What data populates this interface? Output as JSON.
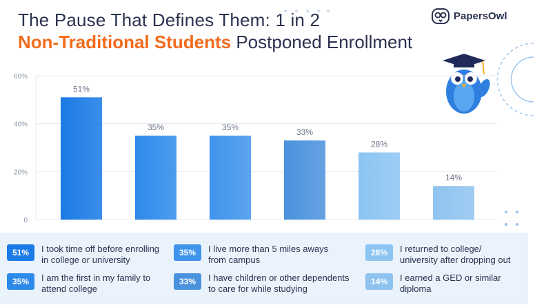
{
  "header": {
    "title_line1": "The Pause That Defines Them: 1 in 2",
    "title_highlight": "Non-Traditional Students",
    "title_rest": " Postponed Enrollment",
    "brand_name": "PapersOwl"
  },
  "colors": {
    "title_text": "#2b3250",
    "highlight": "#f26b1d",
    "legend_bg": "#eaf3fc",
    "bar_shades": [
      "#1a7ae6",
      "#2d8aea",
      "#3f94ec",
      "#4a92dd",
      "#8cc4f2",
      "#8fc3ef"
    ]
  },
  "chart_data": {
    "type": "bar",
    "categories": [
      "51%",
      "35%",
      "35%",
      "33%",
      "28%",
      "14%"
    ],
    "values": [
      51,
      35,
      35,
      33,
      28,
      14
    ],
    "data_labels": [
      "51%",
      "35%",
      "35%",
      "33%",
      "28%",
      "14%"
    ],
    "yticks": [
      "0",
      "20%",
      "40%",
      "60%"
    ],
    "ytick_values": [
      0,
      20,
      40,
      60
    ],
    "ylim": [
      0,
      60
    ],
    "grid": true,
    "legend_placement": "bottom"
  },
  "legend": {
    "items": [
      {
        "badge": "51%",
        "text": "I took time off before enrolling\nin college or university"
      },
      {
        "badge": "35%",
        "text": "I am the first in my family to\nattend college"
      },
      {
        "badge": "35%",
        "text": "I live more than 5 miles aways\nfrom campus"
      },
      {
        "badge": "33%",
        "text": "I have children or other dependents\nto care for while studying"
      },
      {
        "badge": "28%",
        "text": "I returned to college/\nuniversity after dropping out"
      },
      {
        "badge": "14%",
        "text": "I earned a GED or similar\ndiploma"
      }
    ]
  },
  "icons": {
    "brand_logo": "owl-logo-icon",
    "mascot": "owl-graduate-icon"
  }
}
